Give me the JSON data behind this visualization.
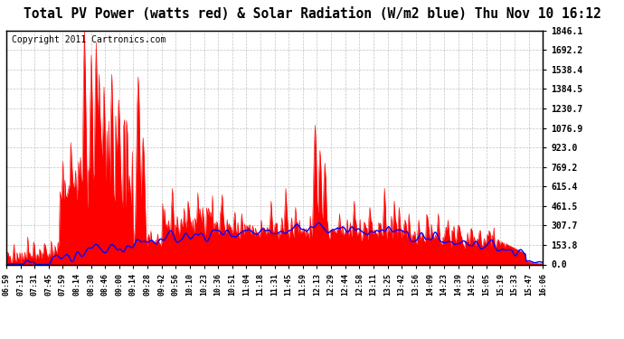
{
  "title": "Total PV Power (watts red) & Solar Radiation (W/m2 blue) Thu Nov 10 16:12",
  "copyright": "Copyright 2011 Cartronics.com",
  "yticks": [
    0.0,
    153.8,
    307.7,
    461.5,
    615.4,
    769.2,
    923.0,
    1076.9,
    1230.7,
    1384.5,
    1538.4,
    1692.2,
    1846.1
  ],
  "ymax": 1846.1,
  "ymin": 0.0,
  "x_labels": [
    "06:59",
    "07:13",
    "07:31",
    "07:45",
    "07:59",
    "08:14",
    "08:30",
    "08:46",
    "09:00",
    "09:14",
    "09:28",
    "09:42",
    "09:56",
    "10:10",
    "10:23",
    "10:36",
    "10:51",
    "11:04",
    "11:18",
    "11:31",
    "11:45",
    "11:59",
    "12:13",
    "12:29",
    "12:44",
    "12:58",
    "13:11",
    "13:25",
    "13:42",
    "13:56",
    "14:09",
    "14:23",
    "14:39",
    "14:52",
    "15:05",
    "15:19",
    "15:33",
    "15:47",
    "16:06"
  ],
  "bg_color": "#ffffff",
  "plot_bg": "#ffffff",
  "grid_color": "#aaaaaa",
  "pv_color": "#ff0000",
  "solar_color": "#0000ff",
  "title_fontsize": 10.5,
  "copyright_fontsize": 7
}
